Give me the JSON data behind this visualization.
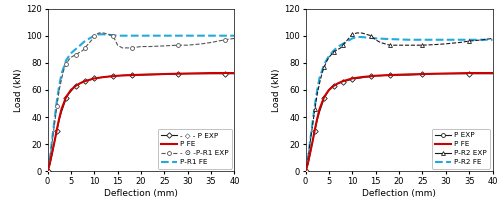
{
  "left": {
    "P_EXP_x": [
      0,
      0.5,
      1,
      1.5,
      2,
      2.5,
      3,
      3.5,
      4,
      4.5,
      5,
      5.5,
      6,
      6.5,
      7,
      7.5,
      8,
      8.5,
      9,
      9.5,
      10,
      11,
      12,
      13,
      14,
      15,
      16,
      17,
      18,
      20,
      22,
      25,
      28,
      30,
      33,
      35,
      38,
      40
    ],
    "P_EXP_y": [
      0,
      5,
      13,
      22,
      30,
      38,
      44,
      49,
      54,
      57,
      59,
      61,
      63,
      64,
      65,
      66,
      66.5,
      67,
      67.5,
      68,
      68.5,
      69,
      69.5,
      70,
      70.2,
      70.5,
      70.8,
      71,
      71,
      71,
      71.2,
      71.5,
      71.8,
      72,
      72,
      72,
      72,
      72
    ],
    "P_FE_x": [
      0,
      0.5,
      1,
      1.5,
      2,
      2.5,
      3,
      4,
      5,
      6,
      7,
      8,
      9,
      10,
      12,
      15,
      18,
      22,
      28,
      35,
      40
    ],
    "P_FE_y": [
      0,
      6,
      14,
      22,
      31,
      39,
      46,
      55,
      60,
      63,
      65,
      66.5,
      67.5,
      68.5,
      69.5,
      70.5,
      71,
      71.5,
      72,
      72.5,
      72.5
    ],
    "PR1_EXP_x": [
      0,
      0.5,
      1,
      1.5,
      2,
      2.5,
      3,
      3.5,
      4,
      4.5,
      5,
      5.5,
      6,
      6.5,
      7,
      7.5,
      8,
      8.5,
      9,
      9.5,
      10,
      11,
      12,
      13,
      14,
      15,
      16,
      17,
      18,
      20,
      22,
      25,
      28,
      30,
      33,
      35,
      38,
      40
    ],
    "PR1_EXP_y": [
      0,
      8,
      22,
      35,
      48,
      60,
      68,
      75,
      79,
      82,
      84,
      85,
      86,
      87,
      88,
      89,
      91,
      93,
      95,
      97,
      100,
      102,
      102,
      101,
      100,
      93,
      91,
      91,
      91,
      92,
      92,
      92.5,
      93,
      93,
      94,
      95,
      97,
      98
    ],
    "PR1_FE_x": [
      0,
      0.5,
      1,
      1.5,
      2,
      2.5,
      3,
      4,
      5,
      6,
      7,
      8,
      9,
      10,
      11,
      12,
      15,
      18,
      22,
      28,
      35,
      40
    ],
    "PR1_FE_y": [
      0,
      9,
      24,
      38,
      52,
      63,
      72,
      82,
      87,
      90,
      93,
      96,
      98,
      100,
      101,
      101,
      100,
      100,
      100,
      100,
      100,
      100
    ],
    "xlim": [
      0,
      40
    ],
    "ylim": [
      0,
      120
    ],
    "xticks": [
      0,
      5,
      10,
      15,
      20,
      25,
      30,
      35,
      40
    ],
    "yticks": [
      0,
      20,
      40,
      60,
      80,
      100,
      120
    ],
    "xlabel": "Deflection (mm)",
    "ylabel": "Load (kN)",
    "legend_labels": [
      "- ◇ - P EXP",
      "P FE",
      "- ⊙ -P-R1 EXP",
      "P-R1 FE"
    ]
  },
  "right": {
    "P_EXP_x": [
      0,
      0.5,
      1,
      1.5,
      2,
      2.5,
      3,
      3.5,
      4,
      4.5,
      5,
      5.5,
      6,
      6.5,
      7,
      7.5,
      8,
      8.5,
      9,
      9.5,
      10,
      11,
      12,
      13,
      14,
      15,
      16,
      17,
      18,
      19,
      20,
      22,
      25,
      28,
      30,
      33,
      35,
      38,
      40
    ],
    "P_EXP_y": [
      0,
      5,
      13,
      22,
      30,
      38,
      44,
      49,
      54,
      57,
      60,
      62,
      63,
      64,
      65,
      65.5,
      66,
      66.5,
      67,
      67.5,
      68,
      68.5,
      69,
      69.5,
      70,
      70.5,
      70.5,
      70.8,
      71,
      71,
      71,
      71,
      71.5,
      72,
      72,
      72,
      72,
      72,
      72
    ],
    "P_FE_x": [
      0,
      0.5,
      1,
      1.5,
      2,
      2.5,
      3,
      4,
      5,
      6,
      7,
      8,
      9,
      10,
      12,
      15,
      18,
      22,
      28,
      35,
      40
    ],
    "P_FE_y": [
      0,
      6,
      14,
      22,
      31,
      39,
      46,
      55,
      60,
      63,
      65,
      66.5,
      67.5,
      68.5,
      69.5,
      70.5,
      71,
      71.5,
      72,
      72.5,
      72.5
    ],
    "PR2_EXP_x": [
      0,
      0.5,
      1,
      1.5,
      2,
      2.5,
      3,
      3.5,
      4,
      4.5,
      5,
      5.5,
      6,
      6.5,
      7,
      7.5,
      8,
      8.5,
      9,
      9.5,
      10,
      11,
      12,
      13,
      14,
      15,
      16,
      17,
      18,
      19,
      20,
      22,
      25,
      28,
      30,
      33,
      35,
      38,
      40
    ],
    "PR2_EXP_y": [
      0,
      8,
      22,
      34,
      46,
      57,
      65,
      72,
      77,
      81,
      84,
      86,
      88,
      89,
      90,
      91,
      93,
      95,
      97,
      99,
      101,
      102,
      102,
      101,
      100,
      97,
      95,
      94,
      93,
      93,
      93,
      93,
      93,
      93.5,
      94,
      95,
      96,
      97,
      98
    ],
    "PR2_FE_x": [
      0,
      0.5,
      1,
      1.5,
      2,
      2.5,
      3,
      4,
      5,
      6,
      7,
      8,
      9,
      10,
      11,
      12,
      15,
      18,
      22,
      28,
      35,
      40
    ],
    "PR2_FE_y": [
      0,
      9,
      23,
      36,
      49,
      60,
      69,
      79,
      85,
      89,
      92,
      94,
      96,
      98,
      99,
      99,
      98,
      97.5,
      97,
      97,
      97,
      97
    ],
    "xlim": [
      0,
      40
    ],
    "ylim": [
      0,
      120
    ],
    "xticks": [
      0,
      5,
      10,
      15,
      20,
      25,
      30,
      35,
      40
    ],
    "yticks": [
      0,
      20,
      40,
      60,
      80,
      100,
      120
    ],
    "xlabel": "Deflection (mm)",
    "ylabel": "Load (kN)",
    "legend_labels": [
      "P EXP",
      "P FE",
      "P-R2 EXP",
      "P-R2 FE"
    ]
  },
  "colors": {
    "P_EXP": "#1a1a1a",
    "P_FE": "#cc0000",
    "PR1_EXP": "#555555",
    "PR1_FE": "#22aadd",
    "PR2_EXP": "#1a1a1a",
    "PR2_FE": "#22aadd"
  },
  "fig_width": 5.0,
  "fig_height": 2.13,
  "dpi": 100
}
